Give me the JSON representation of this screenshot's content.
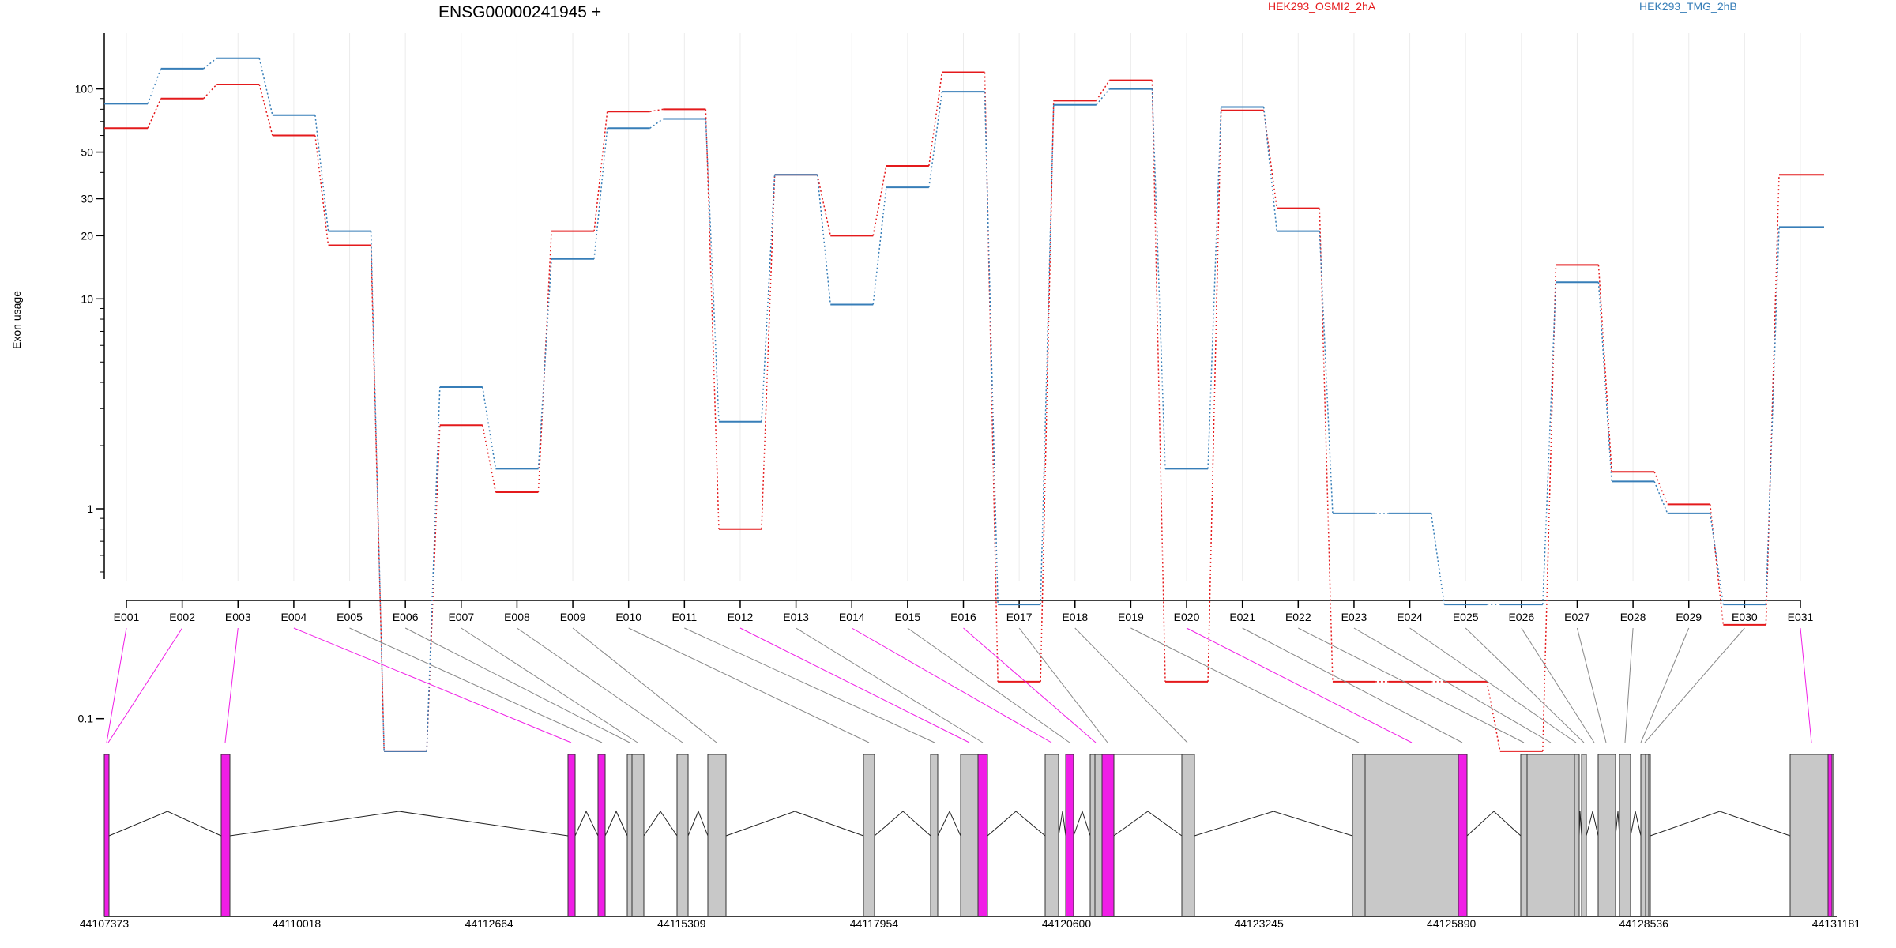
{
  "chart_data": {
    "type": "line",
    "title": "ENSG00000241945 +",
    "xlabel": "",
    "ylabel": "Exon usage",
    "y_scale": "log",
    "yticks": [
      0.1,
      1,
      10,
      20,
      30,
      50,
      100
    ],
    "ytick_labels": [
      "0.1",
      "1",
      "10",
      "20",
      "30",
      "50",
      "100"
    ],
    "legend_placement": "top",
    "grid": "vertical",
    "categories": [
      "E001",
      "E002",
      "E003",
      "E004",
      "E005",
      "E006",
      "E007",
      "E008",
      "E009",
      "E010",
      "E011",
      "E012",
      "E013",
      "E014",
      "E015",
      "E016",
      "E017",
      "E018",
      "E019",
      "E020",
      "E021",
      "E022",
      "E023",
      "E024",
      "E025",
      "E026",
      "E027",
      "E028",
      "E029",
      "E030",
      "E031"
    ],
    "series": [
      {
        "name": "HEK293_OSMI2_2hA",
        "color": "#e41a1c",
        "values": [
          65,
          90,
          105,
          60,
          18,
          0.07,
          2.5,
          1.2,
          21,
          78,
          80,
          0.8,
          39,
          20,
          43,
          120,
          0.15,
          88,
          110,
          0.15,
          79,
          27,
          0.15,
          0.15,
          0.15,
          0.07,
          14.5,
          1.5,
          1.05,
          0.28,
          39
        ]
      },
      {
        "name": "HEK293_TMG_2hB",
        "color": "#377eb8",
        "values": [
          85,
          125,
          140,
          75,
          21,
          0.07,
          3.8,
          1.55,
          15.5,
          65,
          72,
          2.6,
          39,
          9.4,
          34,
          97,
          0.35,
          84,
          100,
          1.55,
          82,
          21,
          0.95,
          0.95,
          0.35,
          0.35,
          12,
          1.35,
          0.95,
          0.35,
          22
        ]
      }
    ],
    "gene_model": {
      "coordinate_labels": [
        "44107373",
        "44110018",
        "44112664",
        "44115309",
        "44117954",
        "44120600",
        "44123245",
        "44125890",
        "44128536",
        "44131181"
      ],
      "highlight_color": "#f01ee6",
      "exon_color": "#c8c8c8",
      "exon_highlighted": [
        true,
        true,
        true,
        true,
        false,
        false,
        false,
        false,
        false,
        false,
        false,
        true,
        false,
        true,
        false,
        true,
        false,
        false,
        false,
        true,
        false,
        false,
        false,
        false,
        false,
        false,
        false,
        false,
        false,
        false,
        true
      ]
    }
  }
}
